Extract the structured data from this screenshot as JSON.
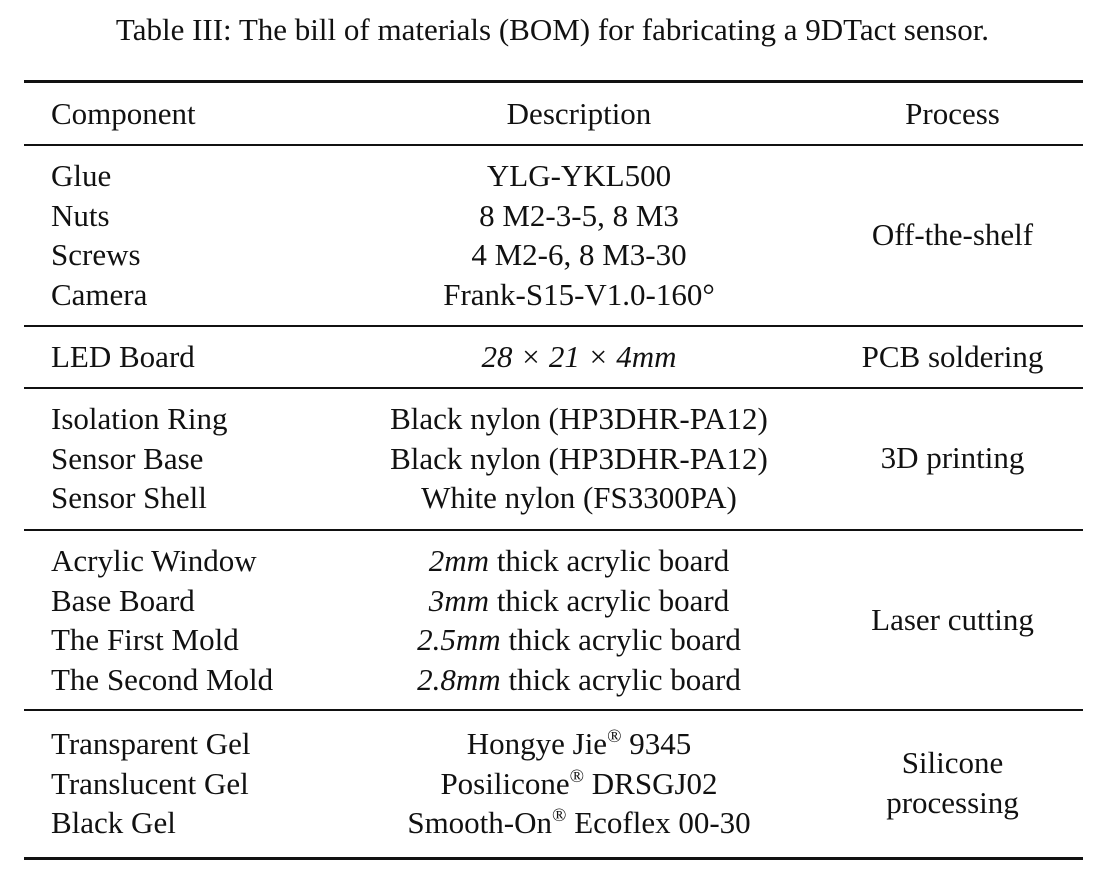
{
  "caption": "Table III: The bill of materials (BOM) for fabricating a 9DTact sensor.",
  "header": {
    "component": "Component",
    "description": "Description",
    "process": "Process"
  },
  "groups": [
    {
      "process": [
        "Off-the-shelf"
      ],
      "rows": [
        {
          "component": "Glue",
          "description": "YLG-YKL500"
        },
        {
          "component": "Nuts",
          "description": "8 M2-3-5, 8 M3"
        },
        {
          "component": "Screws",
          "description": "4 M2-6, 8 M3-30"
        },
        {
          "component": "Camera",
          "description": "Frank-S15-V1.0-160°"
        }
      ]
    },
    {
      "process": [
        "PCB soldering"
      ],
      "rows": [
        {
          "component": "LED Board",
          "description": "28 × 21 × 4mm"
        }
      ]
    },
    {
      "process": [
        "3D printing"
      ],
      "rows": [
        {
          "component": "Isolation Ring",
          "description": "Black nylon (HP3DHR-PA12)"
        },
        {
          "component": "Sensor Base",
          "description": "Black nylon (HP3DHR-PA12)"
        },
        {
          "component": "Sensor Shell",
          "description": "White nylon (FS3300PA)"
        }
      ]
    },
    {
      "process": [
        "Laser cutting"
      ],
      "rows": [
        {
          "component": "Acrylic Window",
          "desc_value": "2mm",
          "desc_rest": " thick acrylic board"
        },
        {
          "component": "Base Board",
          "desc_value": "3mm",
          "desc_rest": " thick acrylic board"
        },
        {
          "component": "The First Mold",
          "desc_value": "2.5mm",
          "desc_rest": " thick acrylic board"
        },
        {
          "component": "The Second Mold",
          "desc_value": "2.8mm",
          "desc_rest": " thick acrylic board"
        }
      ]
    },
    {
      "process": [
        "Silicone",
        "processing"
      ],
      "rows": [
        {
          "component": "Transparent Gel",
          "desc_brand": "Hongye Jie",
          "desc_mark": "®",
          "desc_rest": " 9345"
        },
        {
          "component": "Translucent Gel",
          "desc_brand": "Posilicone",
          "desc_mark": "®",
          "desc_rest": " DRSGJ02"
        },
        {
          "component": "Black Gel",
          "desc_brand": "Smooth-On",
          "desc_mark": "®",
          "desc_rest": " Ecoflex 00-30"
        }
      ]
    }
  ]
}
